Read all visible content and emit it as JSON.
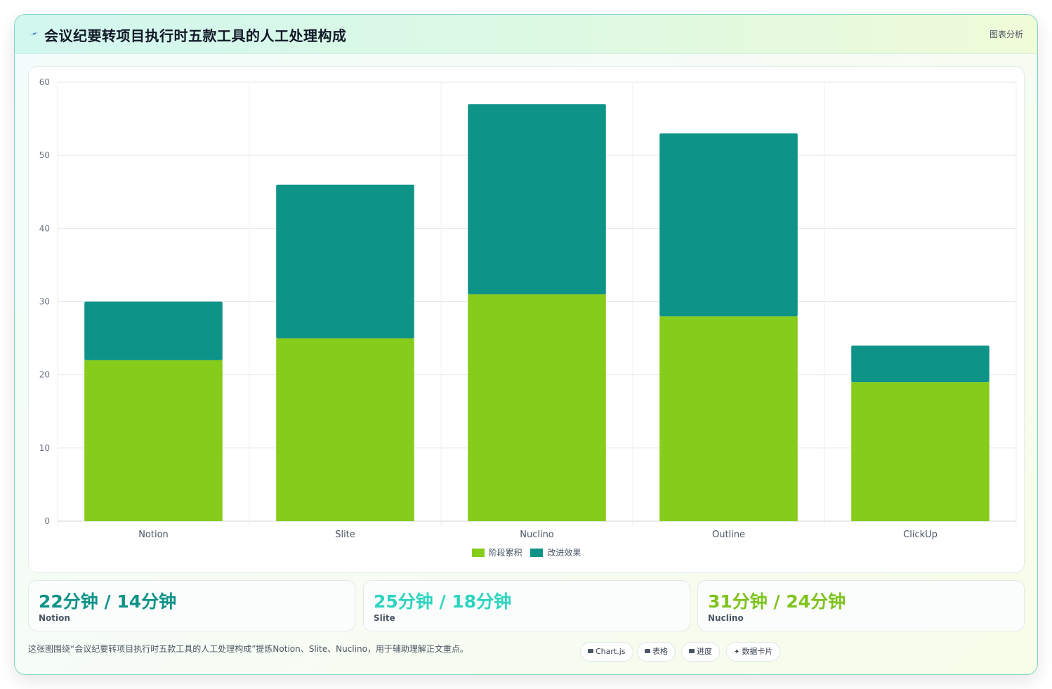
{
  "header": {
    "title": "会议纪要转项目执行时五款工具的人工处理构成",
    "tag": "图表分析"
  },
  "colors": {
    "series_a": "#86cc1a",
    "series_b": "#0e9387",
    "card1": "#0e9387",
    "card2": "#2dd4bf",
    "card3": "#7ec31d"
  },
  "chart_data": {
    "type": "bar",
    "stacked": true,
    "categories": [
      "Notion",
      "Slite",
      "Nuclino",
      "Outline",
      "ClickUp"
    ],
    "series": [
      {
        "name": "阶段累积",
        "values": [
          22,
          25,
          31,
          28,
          19
        ]
      },
      {
        "name": "改进效果",
        "values": [
          8,
          21,
          26,
          25,
          5
        ]
      }
    ],
    "ylim": [
      0,
      60
    ],
    "yticks": [
      0,
      10,
      20,
      30,
      40,
      50,
      60
    ],
    "grid": true,
    "legend_position": "bottom"
  },
  "cards": [
    {
      "value": "22分钟 / 14分钟",
      "label": "Notion"
    },
    {
      "value": "25分钟 / 18分钟",
      "label": "Slite"
    },
    {
      "value": "31分钟 / 24分钟",
      "label": "Nuclino"
    }
  ],
  "footer": {
    "note": "这张图围绕“会议纪要转项目执行时五款工具的人工处理构成”提炼Notion、Slite、Nuclino，用于辅助理解正文重点。",
    "chips": [
      "Chart.js",
      "表格",
      "进度",
      "数据卡片"
    ]
  }
}
